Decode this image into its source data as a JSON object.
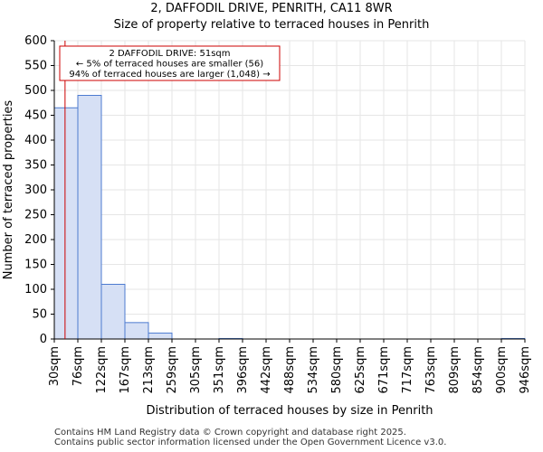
{
  "title_line1": "2, DAFFODIL DRIVE, PENRITH, CA11 8WR",
  "title_line2": "Size of property relative to terraced houses in Penrith",
  "footer_line1": "Contains HM Land Registry data © Crown copyright and database right 2025.",
  "footer_line2": "Contains public sector information licensed under the Open Government Licence v3.0.",
  "chart_data": {
    "type": "bar",
    "title": "Size of property relative to terraced houses in Penrith",
    "xlabel": "Distribution of terraced houses by size in Penrith",
    "ylabel": "Number of terraced properties",
    "ylim": [
      0,
      600
    ],
    "yticks": [
      0,
      50,
      100,
      150,
      200,
      250,
      300,
      350,
      400,
      450,
      500,
      550,
      600
    ],
    "bin_edges": [
      30,
      76,
      122,
      167,
      213,
      259,
      305,
      351,
      396,
      442,
      488,
      534,
      580,
      625,
      671,
      717,
      763,
      809,
      854,
      900,
      946
    ],
    "tick_labels": [
      "30sqm",
      "76sqm",
      "122sqm",
      "167sqm",
      "213sqm",
      "259sqm",
      "305sqm",
      "351sqm",
      "396sqm",
      "442sqm",
      "488sqm",
      "534sqm",
      "580sqm",
      "625sqm",
      "671sqm",
      "717sqm",
      "763sqm",
      "809sqm",
      "854sqm",
      "900sqm",
      "946sqm"
    ],
    "values": [
      465,
      490,
      110,
      33,
      12,
      0,
      0,
      1,
      0,
      0,
      0,
      0,
      0,
      0,
      0,
      0,
      0,
      0,
      0,
      1
    ],
    "bar_color": "#d6e0f5",
    "bar_edge": "#4d7bd0",
    "marker": {
      "value": 51,
      "color": "#cc0000"
    },
    "annotation": {
      "lines": [
        "2 DAFFODIL DRIVE: 51sqm",
        "← 5% of terraced houses are smaller (56)",
        "94% of terraced houses are larger (1,048) →"
      ],
      "border_color": "#cc0000"
    }
  }
}
